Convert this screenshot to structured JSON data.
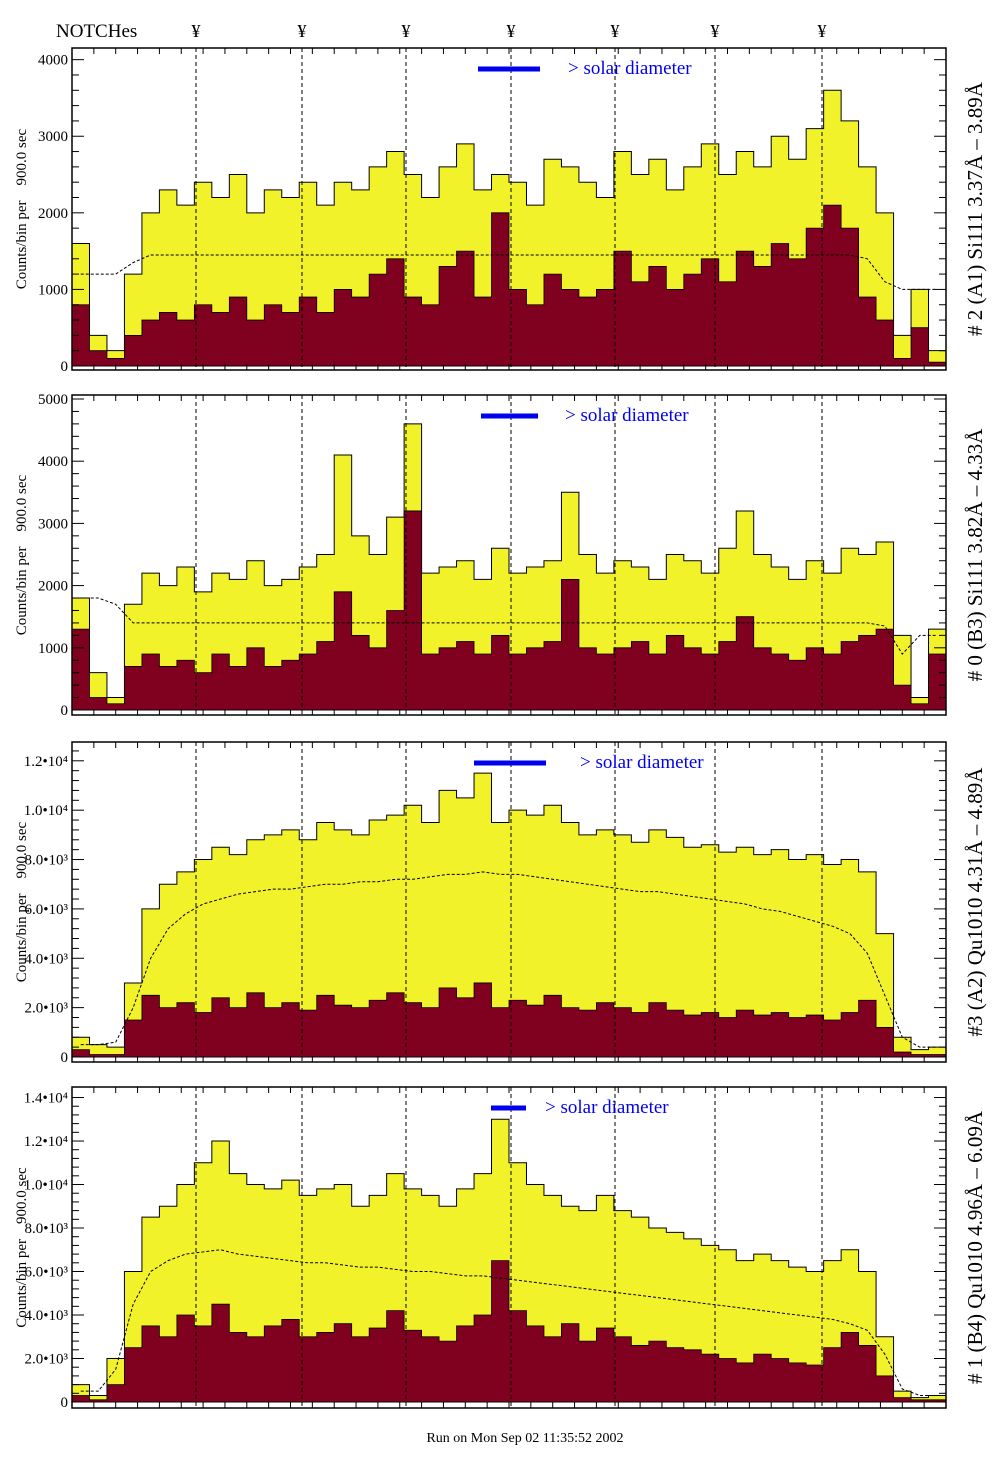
{
  "header": {
    "notches_label": "NOTCHes",
    "notch_symbol": "¥",
    "notch_count": 7
  },
  "footer": {
    "run_text": "Run on Mon Sep 02 11:35:52 2002"
  },
  "colors": {
    "total": "#f2f22a",
    "subset": "#800020",
    "legend": "#0000ee"
  },
  "chart_data": [
    {
      "type": "bar",
      "title": "# 2 (A1) Si111  3.37Å – 3.89Å",
      "ylabel": "Counts/bin per    900.0 sec",
      "legend": "> solar diameter",
      "ylim": [
        0,
        4100
      ],
      "yticks": [
        {
          "v": 0,
          "l": "0"
        },
        {
          "v": 1000,
          "l": "1000"
        },
        {
          "v": 2000,
          "l": "2000"
        },
        {
          "v": 3000,
          "l": "3000"
        },
        {
          "v": 4000,
          "l": "4000"
        }
      ],
      "total": [
        1600,
        400,
        200,
        1200,
        2000,
        2300,
        2100,
        2400,
        2200,
        2500,
        2000,
        2300,
        2200,
        2400,
        2100,
        2400,
        2300,
        2600,
        2800,
        2500,
        2200,
        2600,
        2900,
        2300,
        2500,
        2400,
        2100,
        2700,
        2600,
        2400,
        2200,
        2800,
        2500,
        2700,
        2300,
        2600,
        2900,
        2500,
        2800,
        2600,
        3000,
        2700,
        3100,
        3600,
        3200,
        2600,
        2000,
        400,
        1000,
        200
      ],
      "subset": [
        800,
        200,
        100,
        400,
        600,
        700,
        600,
        800,
        700,
        900,
        600,
        800,
        700,
        900,
        700,
        1000,
        900,
        1200,
        1400,
        900,
        800,
        1300,
        1500,
        900,
        2000,
        1000,
        800,
        1200,
        1000,
        900,
        1000,
        1500,
        1100,
        1300,
        1000,
        1200,
        1400,
        1100,
        1500,
        1300,
        1600,
        1400,
        1800,
        2100,
        1800,
        900,
        600,
        100,
        500,
        50
      ],
      "model": [
        1200,
        1200,
        1200,
        1350,
        1450,
        1450,
        1450,
        1450,
        1450,
        1450,
        1450,
        1450,
        1450,
        1450,
        1450,
        1450,
        1450,
        1450,
        1450,
        1450,
        1450,
        1450,
        1450,
        1450,
        1450,
        1450,
        1450,
        1450,
        1450,
        1450,
        1450,
        1450,
        1450,
        1450,
        1450,
        1450,
        1450,
        1450,
        1450,
        1450,
        1450,
        1450,
        1450,
        1450,
        1450,
        1400,
        1100,
        1000,
        1000,
        1000
      ]
    },
    {
      "type": "bar",
      "title": "# 0 (B3) Si111  3.82Å – 4.33Å",
      "ylabel": "Counts/bin per    900.0 sec",
      "legend": "> solar diameter",
      "ylim": [
        0,
        5000
      ],
      "yticks": [
        {
          "v": 0,
          "l": "0"
        },
        {
          "v": 1000,
          "l": "1000"
        },
        {
          "v": 2000,
          "l": "2000"
        },
        {
          "v": 3000,
          "l": "3000"
        },
        {
          "v": 4000,
          "l": "4000"
        },
        {
          "v": 5000,
          "l": "5000"
        }
      ],
      "total": [
        1800,
        600,
        200,
        1700,
        2200,
        2000,
        2300,
        1900,
        2200,
        2100,
        2400,
        2000,
        2100,
        2300,
        2500,
        4100,
        2800,
        2500,
        3100,
        4600,
        2200,
        2300,
        2400,
        2100,
        2600,
        2200,
        2300,
        2400,
        3500,
        2500,
        2200,
        2400,
        2300,
        2100,
        2500,
        2400,
        2200,
        2600,
        3200,
        2500,
        2300,
        2100,
        2400,
        2200,
        2600,
        2500,
        2700,
        1200,
        200,
        1300
      ],
      "subset": [
        1300,
        200,
        100,
        700,
        900,
        700,
        800,
        600,
        900,
        700,
        1000,
        700,
        800,
        900,
        1100,
        1900,
        1200,
        1000,
        1600,
        3200,
        900,
        1000,
        1100,
        900,
        1200,
        900,
        1000,
        1100,
        2100,
        1000,
        900,
        1000,
        1100,
        900,
        1200,
        1000,
        900,
        1100,
        1500,
        1000,
        900,
        800,
        1000,
        900,
        1100,
        1200,
        1300,
        400,
        100,
        900
      ],
      "model": [
        1800,
        1800,
        1700,
        1400,
        1400,
        1400,
        1400,
        1400,
        1400,
        1400,
        1400,
        1400,
        1400,
        1400,
        1400,
        1400,
        1400,
        1400,
        1400,
        1400,
        1400,
        1400,
        1400,
        1400,
        1400,
        1400,
        1400,
        1400,
        1400,
        1400,
        1400,
        1400,
        1400,
        1400,
        1400,
        1400,
        1400,
        1400,
        1400,
        1400,
        1400,
        1400,
        1400,
        1400,
        1400,
        1400,
        1350,
        900,
        1200,
        1200
      ]
    },
    {
      "type": "bar",
      "title": "#3 (A2) Qu1010  4.31Å – 4.89Å",
      "ylabel": "Counts/bin per    900.0 sec",
      "legend": "> solar diameter",
      "ylim": [
        0,
        12600
      ],
      "yticks": [
        {
          "v": 0,
          "l": "0"
        },
        {
          "v": 2000,
          "l": "2.0•10³"
        },
        {
          "v": 4000,
          "l": "4.0•10³"
        },
        {
          "v": 6000,
          "l": "6.0•10³"
        },
        {
          "v": 8000,
          "l": "8.0•10³"
        },
        {
          "v": 10000,
          "l": "1.0•10⁴"
        },
        {
          "v": 12000,
          "l": "1.2•10⁴"
        }
      ],
      "total": [
        800,
        500,
        400,
        3000,
        6000,
        7000,
        7500,
        8000,
        8500,
        8200,
        8800,
        9000,
        9200,
        8800,
        9500,
        9200,
        9000,
        9600,
        9800,
        10200,
        9500,
        10800,
        10500,
        11500,
        9500,
        10000,
        9800,
        10200,
        9500,
        9000,
        9200,
        9000,
        8700,
        9200,
        8900,
        8500,
        8600,
        8300,
        8500,
        8200,
        8400,
        8000,
        8200,
        7800,
        8000,
        7500,
        5000,
        800,
        300,
        400
      ],
      "subset": [
        300,
        100,
        100,
        1500,
        2500,
        2000,
        2200,
        1800,
        2400,
        2000,
        2600,
        2000,
        2200,
        1900,
        2500,
        2100,
        2000,
        2300,
        2600,
        2200,
        2000,
        2800,
        2400,
        3000,
        2000,
        2300,
        2100,
        2500,
        2000,
        1900,
        2200,
        2000,
        1800,
        2200,
        1900,
        1700,
        1800,
        1600,
        1900,
        1700,
        1800,
        1600,
        1700,
        1500,
        1800,
        2300,
        1200,
        200,
        100,
        100
      ],
      "model": [
        500,
        500,
        600,
        2000,
        4000,
        5200,
        5800,
        6200,
        6400,
        6600,
        6700,
        6800,
        6800,
        6900,
        7000,
        7000,
        7100,
        7100,
        7200,
        7200,
        7300,
        7400,
        7400,
        7500,
        7400,
        7400,
        7300,
        7200,
        7100,
        7000,
        6900,
        6800,
        6700,
        6700,
        6600,
        6500,
        6400,
        6300,
        6200,
        6000,
        5900,
        5700,
        5500,
        5300,
        5000,
        4200,
        2500,
        800,
        400,
        400
      ]
    },
    {
      "type": "bar",
      "title": "# 1 (B4) Qu1010 4.96Å – 6.09Å",
      "ylabel": "Counts/bin per    900.0 sec",
      "legend": "> solar diameter",
      "ylim": [
        0,
        14300
      ],
      "yticks": [
        {
          "v": 0,
          "l": "0"
        },
        {
          "v": 2000,
          "l": "2.0•10³"
        },
        {
          "v": 4000,
          "l": "4.0•10³"
        },
        {
          "v": 6000,
          "l": "6.0•10³"
        },
        {
          "v": 8000,
          "l": "8.0•10³"
        },
        {
          "v": 10000,
          "l": "1.0•10⁴"
        },
        {
          "v": 12000,
          "l": "1.2•10⁴"
        },
        {
          "v": 14000,
          "l": "1.4•10⁴"
        }
      ],
      "total": [
        800,
        300,
        2000,
        6000,
        8500,
        9000,
        10000,
        11000,
        12000,
        10500,
        10000,
        9800,
        10200,
        9500,
        9800,
        10000,
        9000,
        9500,
        10500,
        9800,
        9500,
        9000,
        9800,
        10500,
        13000,
        11000,
        10000,
        9500,
        9000,
        8800,
        9500,
        8800,
        8500,
        8000,
        7800,
        7500,
        7200,
        7000,
        6500,
        6800,
        6500,
        6200,
        6000,
        6500,
        7000,
        6000,
        3000,
        500,
        200,
        300
      ],
      "subset": [
        300,
        100,
        800,
        2500,
        3500,
        3000,
        4000,
        3500,
        4500,
        3200,
        3000,
        3500,
        3800,
        3000,
        3200,
        3600,
        3000,
        3400,
        4200,
        3300,
        3000,
        2800,
        3500,
        4000,
        6500,
        4200,
        3500,
        3000,
        3600,
        2800,
        3400,
        3000,
        2600,
        2800,
        2500,
        2400,
        2200,
        2000,
        1800,
        2200,
        2000,
        1800,
        1700,
        2500,
        3200,
        2600,
        1200,
        200,
        100,
        100
      ],
      "model": [
        500,
        500,
        1500,
        4500,
        6000,
        6500,
        6800,
        6900,
        7000,
        6800,
        6700,
        6600,
        6500,
        6400,
        6400,
        6300,
        6200,
        6200,
        6100,
        6000,
        6000,
        5900,
        5800,
        5800,
        5700,
        5600,
        5500,
        5400,
        5300,
        5200,
        5100,
        5000,
        4900,
        4800,
        4700,
        4600,
        4500,
        4400,
        4300,
        4200,
        4100,
        4000,
        3900,
        3800,
        3600,
        3300,
        2200,
        600,
        300,
        300
      ]
    }
  ]
}
